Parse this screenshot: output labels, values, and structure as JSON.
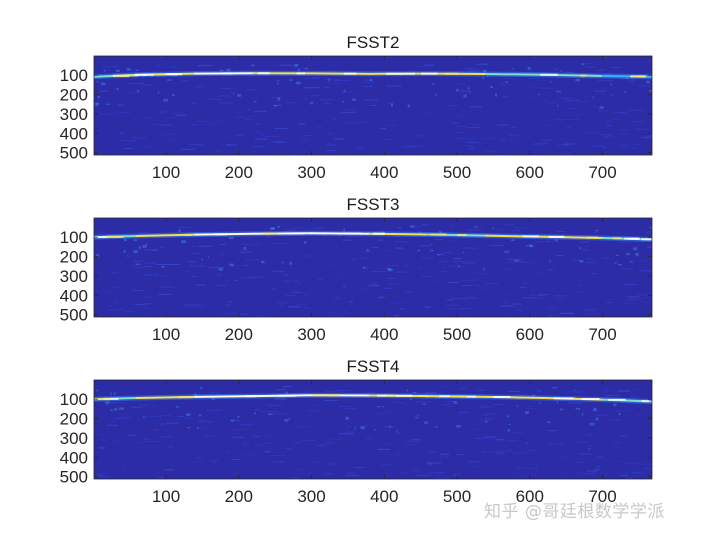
{
  "chart_data": [
    {
      "type": "heatmap",
      "title": "FSST2",
      "xlabel": "",
      "ylabel": "",
      "xlim": [
        1,
        768
      ],
      "ylim": [
        1,
        512
      ],
      "y_reversed": true,
      "xticks": [
        100,
        200,
        300,
        400,
        500,
        600,
        700
      ],
      "yticks": [
        100,
        200,
        300,
        400,
        500
      ],
      "background_color": "#2c2ca6",
      "ridge": {
        "x": [
          0,
          60,
          140,
          220,
          300,
          380,
          460,
          540,
          620,
          700,
          768
        ],
        "y": [
          108,
          98,
          92,
          90,
          91,
          93,
          92,
          94,
          98,
          104,
          108
        ],
        "intensity": [
          0.45,
          0.7,
          0.95,
          1.0,
          0.7,
          0.85,
          0.95,
          0.6,
          0.8,
          0.65,
          0.45
        ]
      }
    },
    {
      "type": "heatmap",
      "title": "FSST3",
      "xlabel": "",
      "ylabel": "",
      "xlim": [
        1,
        768
      ],
      "ylim": [
        1,
        512
      ],
      "y_reversed": true,
      "xticks": [
        100,
        200,
        300,
        400,
        500,
        600,
        700
      ],
      "yticks": [
        100,
        200,
        300,
        400,
        500
      ],
      "background_color": "#2c2ca6",
      "ridge": {
        "x": [
          0,
          60,
          140,
          220,
          300,
          380,
          460,
          540,
          620,
          700,
          768
        ],
        "y": [
          100,
          94,
          87,
          82,
          80,
          82,
          86,
          92,
          98,
          104,
          112
        ],
        "intensity": [
          0.5,
          0.8,
          0.9,
          0.95,
          1.0,
          0.85,
          0.8,
          0.7,
          0.9,
          0.7,
          0.5
        ]
      }
    },
    {
      "type": "heatmap",
      "title": "FSST4",
      "xlabel": "",
      "ylabel": "",
      "xlim": [
        1,
        768
      ],
      "ylim": [
        1,
        512
      ],
      "y_reversed": true,
      "xticks": [
        100,
        200,
        300,
        400,
        500,
        600,
        700
      ],
      "yticks": [
        100,
        200,
        300,
        400,
        500
      ],
      "background_color": "#2c2ca6",
      "ridge": {
        "x": [
          0,
          60,
          140,
          220,
          300,
          380,
          460,
          540,
          620,
          700,
          768
        ],
        "y": [
          100,
          94,
          88,
          84,
          80,
          81,
          84,
          88,
          94,
          102,
          112
        ],
        "intensity": [
          0.5,
          0.8,
          0.9,
          0.95,
          1.0,
          0.9,
          0.85,
          0.75,
          0.9,
          0.7,
          0.5
        ]
      }
    }
  ],
  "watermark": "知乎 @哥廷根数学学派"
}
